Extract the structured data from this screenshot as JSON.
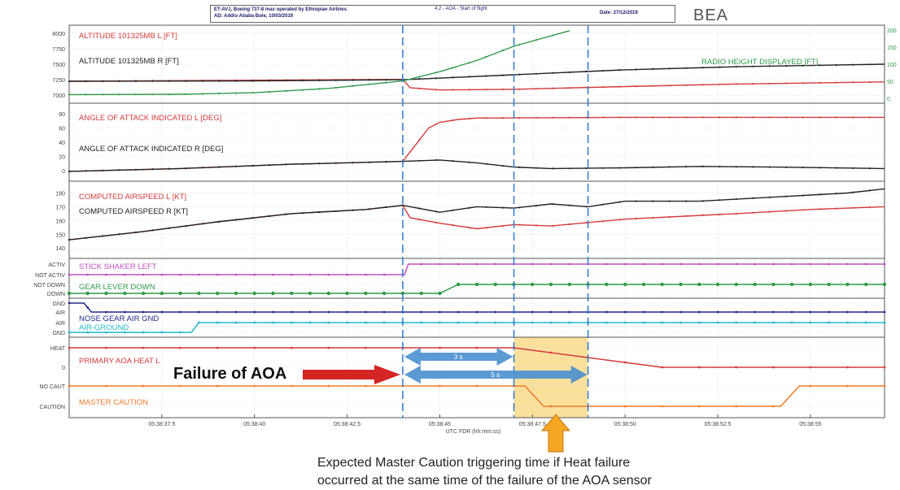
{
  "header": {
    "line1": "ET-AVJ, Boeing 737-8 max operated by Ethiopian Airlines",
    "line2": "AD: Addis-Ababa Bole, 10/03/2019",
    "middle": "4.2 - AOA - Start of flight",
    "date": "Date: 27/12/2019",
    "agency": "BEA"
  },
  "annotations": {
    "failure": "Failure of AOA",
    "arrow_short": "3 s",
    "arrow_long": "5 s",
    "expected_line1": "Expected Master Caution triggering time if Heat failure",
    "expected_line2": "occurred at the same time of the failure of the AOA sensor"
  },
  "colors": {
    "red": "#d43a3a",
    "black": "#222222",
    "green": "#2e9a46",
    "magenta": "#c050c0",
    "navy": "#1f2a8a",
    "cyan": "#1fb7c9",
    "orange": "#f07a2a",
    "blue_arrow": "#4a8fd0",
    "highlight": "#f7c74a",
    "dash": "#3b7fd0"
  },
  "chart_data": {
    "type": "line",
    "xlabel": "UTC FDR (hh:mm:ss)",
    "x_ticks": [
      "05:38:37.5",
      "05:38:40",
      "05:38:42.5",
      "05:38:45",
      "05:38:47.5",
      "05:38:50",
      "05:38:52.5",
      "05:38:55"
    ],
    "x_tick_values": [
      37.5,
      40,
      42.5,
      45,
      47.5,
      50,
      52.5,
      55
    ],
    "xlim": [
      35.0,
      57.0
    ],
    "events": {
      "aoa_failure": 44.0,
      "three_s_later": 47.0,
      "five_s_later": 49.0
    },
    "panels": [
      {
        "id": "altitude",
        "yticks": [
          "8000",
          "7750",
          "7500",
          "7250",
          "7000"
        ],
        "ytick_values": [
          8000,
          7750,
          7500,
          7250,
          7000
        ],
        "ylim": [
          6950,
          8050
        ],
        "right_ticks": [
          "200",
          "150",
          "100",
          "50",
          "0"
        ],
        "series": [
          {
            "name": "ALTITUDE 101325MB L [FT]",
            "color": "#d43a3a",
            "x": [
              35,
              44,
              44.2,
              45,
              47,
              50,
              53,
              57
            ],
            "y": [
              7225,
              7255,
              7120,
              7085,
              7095,
              7140,
              7180,
              7215
            ]
          },
          {
            "name": "ALTITUDE 101325MB R [FT]",
            "color": "#222222",
            "x": [
              35,
              40,
              44,
              47,
              50,
              53,
              57
            ],
            "y": [
              7225,
              7230,
              7250,
              7330,
              7410,
              7460,
              7500
            ]
          },
          {
            "name": "RADIO HEIGHT DISPLAYED [FT]",
            "color": "#2e9a46",
            "x": [
              35,
              38,
              40,
              42,
              44,
              45,
              46,
              47,
              48.5
            ],
            "y": [
              7010,
              7015,
              7040,
              7110,
              7230,
              7380,
              7560,
              7790,
              8040
            ]
          }
        ]
      },
      {
        "id": "aoa",
        "yticks": [
          "80",
          "60",
          "40",
          "20",
          "0"
        ],
        "ytick_values": [
          80,
          60,
          40,
          20,
          0
        ],
        "ylim": [
          -8,
          88
        ],
        "series": [
          {
            "name": "ANGLE OF ATTACK INDICATED L [DEG]",
            "color": "#d43a3a",
            "x": [
              35,
              38,
              41,
              44,
              44.3,
              44.7,
              45,
              45.5,
              46,
              50,
              57
            ],
            "y": [
              -1,
              3,
              9,
              13,
              33,
              60,
              68,
              72,
              74,
              75,
              75
            ]
          },
          {
            "name": "ANGLE OF ATTACK INDICATED R [DEG]",
            "color": "#222222",
            "x": [
              35,
              38,
              41,
              44,
              45,
              46,
              47,
              48,
              50,
              52,
              54,
              57
            ],
            "y": [
              -1,
              3,
              9,
              13,
              15,
              11,
              5,
              3,
              4,
              6,
              5,
              3
            ]
          }
        ]
      },
      {
        "id": "airspeed",
        "yticks": [
          "180",
          "170",
          "160",
          "150",
          "140"
        ],
        "ytick_values": [
          180,
          170,
          160,
          150,
          140
        ],
        "ylim": [
          136,
          185
        ],
        "series": [
          {
            "name": "COMPUTED AIRSPEED L [KT]",
            "color": "#d43a3a",
            "x": [
              35,
              37,
              39,
              41,
              43,
              44,
              44.2,
              45,
              46,
              47,
              48,
              50,
              53,
              55,
              57
            ],
            "y": [
              146,
              152,
              159,
              165,
              168,
              171,
              162,
              158,
              154,
              157,
              156,
              161,
              165,
              168,
              170
            ]
          },
          {
            "name": "COMPUTED AIRSPEED R [KT]",
            "color": "#222222",
            "x": [
              35,
              37,
              39,
              41,
              43,
              44,
              45,
              46,
              47,
              48,
              49,
              50,
              52,
              54,
              56,
              57
            ],
            "y": [
              146,
              152,
              159,
              165,
              168,
              171,
              166,
              170,
              169,
              172,
              170,
              174,
              174,
              177,
              180,
              183
            ]
          }
        ]
      },
      {
        "id": "discretes1",
        "labels": [
          "ACTIV",
          "NOT ACTIV",
          "NOT DOWN",
          "DOWN"
        ],
        "series": [
          {
            "name": "STICK SHAKER LEFT",
            "color": "#c050c0",
            "states": [
              "NOT ACTIV",
              "ACTIV"
            ],
            "x": [
              35,
              44.05,
              44.15,
              57
            ],
            "v": [
              0,
              0,
              1,
              1
            ]
          },
          {
            "name": "GEAR LEVER DOWN",
            "color": "#2e9a46",
            "states": [
              "DOWN",
              "NOT DOWN"
            ],
            "x": [
              35,
              45.0,
              45.5,
              57
            ],
            "v": [
              0,
              0,
              1,
              1
            ]
          }
        ]
      },
      {
        "id": "discretes2",
        "labels": [
          "GND",
          "AIR",
          "AIR",
          "GND"
        ],
        "series": [
          {
            "name": "NOSE GEAR AIR GND",
            "color": "#1f2a8a",
            "states": [
              "GND",
              "AIR"
            ],
            "x": [
              35,
              35.4,
              35.6,
              57
            ],
            "v": [
              0,
              0,
              1,
              1
            ]
          },
          {
            "name": "AIR-GROUND",
            "color": "#1fb7c9",
            "states": [
              "GND",
              "AIR"
            ],
            "x": [
              35,
              38.3,
              38.5,
              57
            ],
            "v": [
              0,
              0,
              1,
              1
            ]
          }
        ]
      },
      {
        "id": "discretes3",
        "labels": [
          "HEAT",
          "0",
          "NO CAUT",
          "CAUTION"
        ],
        "series": [
          {
            "name": "PRIMARY AOA HEAT L",
            "color": "#d43a3a",
            "states": [
              "0",
              "HEAT"
            ],
            "x": [
              35,
              47.0,
              51.0,
              57
            ],
            "v": [
              1,
              1,
              0,
              0
            ]
          },
          {
            "name": "MASTER CAUTION",
            "color": "#f07a2a",
            "states": [
              "CAUTION",
              "NO CAUT"
            ],
            "x": [
              35,
              47.3,
              47.8,
              54.2,
              54.7,
              57
            ],
            "v": [
              1,
              1,
              0,
              0,
              1,
              1
            ]
          }
        ]
      }
    ]
  }
}
